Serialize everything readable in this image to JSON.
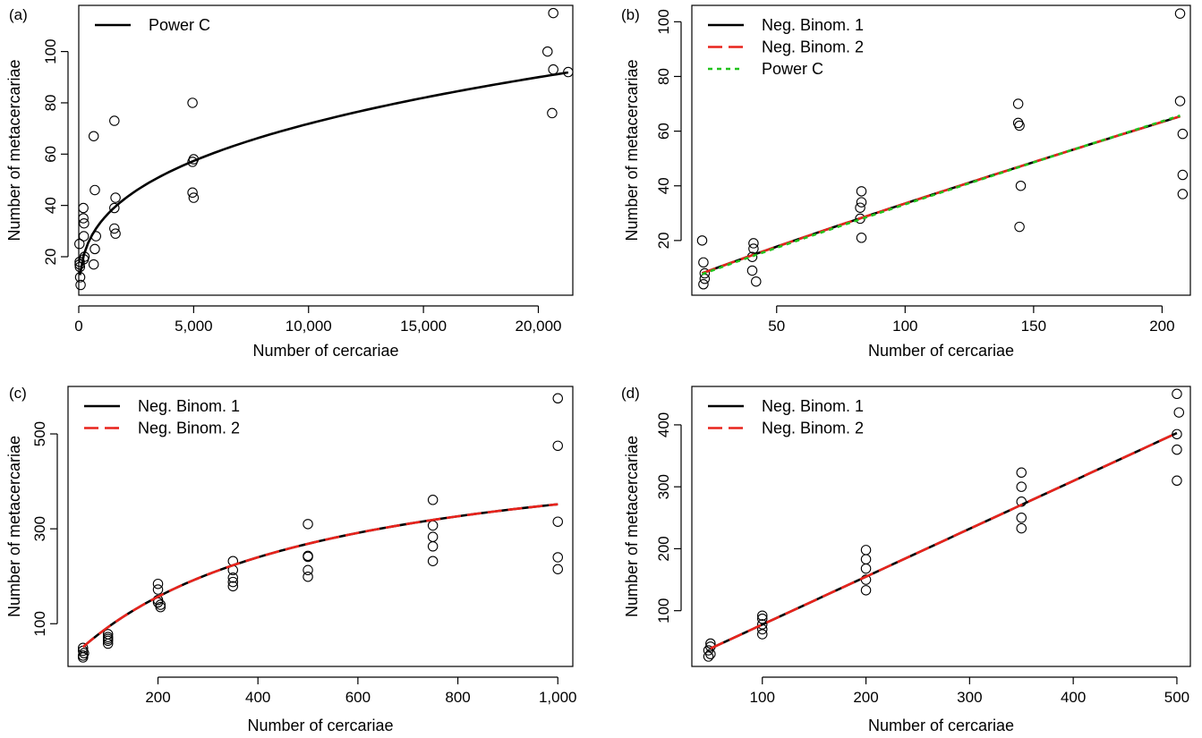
{
  "chart_data": [
    {
      "panel_label": "(a)",
      "type": "scatter",
      "xlabel": "Number of cercariae",
      "ylabel": "Number of metacercariae",
      "xlim": [
        0,
        21500
      ],
      "ylim": [
        5,
        118
      ],
      "xticks": [
        0,
        5000,
        10000,
        15000,
        20000
      ],
      "xtick_labels": [
        "0",
        "5,000",
        "10,000",
        "15,000",
        "20,000"
      ],
      "yticks": [
        20,
        40,
        60,
        80,
        100
      ],
      "ytick_labels": [
        "20",
        "40",
        "60",
        "80",
        "100"
      ],
      "legend_position": "top-left",
      "points": [
        [
          30,
          25
        ],
        [
          40,
          18
        ],
        [
          40,
          17
        ],
        [
          50,
          16
        ],
        [
          60,
          12
        ],
        [
          80,
          9
        ],
        [
          200,
          39
        ],
        [
          200,
          35
        ],
        [
          230,
          33
        ],
        [
          220,
          28
        ],
        [
          250,
          20
        ],
        [
          220,
          19
        ],
        [
          650,
          67
        ],
        [
          700,
          46
        ],
        [
          750,
          28
        ],
        [
          700,
          23
        ],
        [
          650,
          17
        ],
        [
          1550,
          73
        ],
        [
          1600,
          43
        ],
        [
          1550,
          39
        ],
        [
          1550,
          31
        ],
        [
          1600,
          29
        ],
        [
          4950,
          80
        ],
        [
          5000,
          58
        ],
        [
          4950,
          57
        ],
        [
          4950,
          45
        ],
        [
          5000,
          43
        ],
        [
          20400,
          100
        ],
        [
          20650,
          115
        ],
        [
          20650,
          93
        ],
        [
          20600,
          76
        ],
        [
          21300,
          92
        ]
      ],
      "series": [
        {
          "name": "Power C",
          "color": "#000000",
          "dash": "solid",
          "model": "power",
          "a": 3.6,
          "b": 0.325,
          "x_range": [
            50,
            21300
          ]
        }
      ]
    },
    {
      "panel_label": "(b)",
      "type": "scatter",
      "xlabel": "Number of cercariae",
      "ylabel": "Number of metacercariae",
      "xlim": [
        17,
        211
      ],
      "ylim": [
        0,
        106
      ],
      "xticks": [
        50,
        100,
        150,
        200
      ],
      "xtick_labels": [
        "50",
        "100",
        "150",
        "200"
      ],
      "yticks": [
        20,
        40,
        60,
        80,
        100
      ],
      "yticks_labels_note": "",
      "ytick_labels": [
        "20",
        "40",
        "60",
        "80",
        "100"
      ],
      "legend_position": "top-left",
      "points": [
        [
          21,
          20
        ],
        [
          21.5,
          12
        ],
        [
          22,
          8
        ],
        [
          22,
          6
        ],
        [
          21.5,
          4
        ],
        [
          41,
          19
        ],
        [
          41,
          17
        ],
        [
          40.5,
          14
        ],
        [
          40.5,
          9
        ],
        [
          42,
          5
        ],
        [
          83,
          38
        ],
        [
          83,
          34
        ],
        [
          82.5,
          32
        ],
        [
          82.5,
          28
        ],
        [
          83,
          21
        ],
        [
          144,
          70
        ],
        [
          144,
          63
        ],
        [
          144.5,
          62
        ],
        [
          145,
          40
        ],
        [
          144.5,
          25
        ],
        [
          207,
          103
        ],
        [
          207,
          71
        ],
        [
          208,
          59
        ],
        [
          208,
          44
        ],
        [
          208,
          37
        ]
      ],
      "series": [
        {
          "name": "Neg. Binom. 1",
          "color": "#000000",
          "dash": "solid",
          "model": "power",
          "a": 0.4893,
          "b": 0.918,
          "x_range": [
            21,
            207
          ]
        },
        {
          "name": "Neg. Binom. 2",
          "color": "#e8231c",
          "dash": "long",
          "model": "power",
          "a": 0.4893,
          "b": 0.918,
          "x_range": [
            21,
            207
          ]
        },
        {
          "name": "Power C",
          "color": "#21c21c",
          "dash": "dot",
          "model": "power",
          "a": 0.444,
          "b": 0.937,
          "x_range": [
            21,
            207
          ]
        }
      ]
    },
    {
      "panel_label": "(c)",
      "type": "scatter",
      "xlabel": "Number of cercariae",
      "ylabel": "Number of metacercariae",
      "xlim": [
        20,
        1030
      ],
      "ylim": [
        10,
        600
      ],
      "xticks": [
        200,
        400,
        600,
        800,
        1000
      ],
      "xtick_labels": [
        "200",
        "400",
        "600",
        "800",
        "1,000"
      ],
      "yticks": [
        100,
        300,
        500
      ],
      "ytick_labels": [
        "100",
        "300",
        "500"
      ],
      "legend_position": "top-left",
      "points": [
        [
          50,
          49
        ],
        [
          50,
          43
        ],
        [
          52,
          38
        ],
        [
          50,
          33
        ],
        [
          50,
          29
        ],
        [
          100,
          78
        ],
        [
          100,
          72
        ],
        [
          100,
          68
        ],
        [
          100,
          64
        ],
        [
          100,
          58
        ],
        [
          200,
          184
        ],
        [
          200,
          172
        ],
        [
          200,
          150
        ],
        [
          200,
          145
        ],
        [
          205,
          140
        ],
        [
          205,
          135
        ],
        [
          350,
          232
        ],
        [
          350,
          213
        ],
        [
          350,
          197
        ],
        [
          350,
          188
        ],
        [
          350,
          179
        ],
        [
          500,
          310
        ],
        [
          500,
          243
        ],
        [
          500,
          241
        ],
        [
          500,
          213
        ],
        [
          500,
          199
        ],
        [
          750,
          361
        ],
        [
          750,
          307
        ],
        [
          750,
          283
        ],
        [
          750,
          263
        ],
        [
          750,
          232
        ],
        [
          1000,
          575
        ],
        [
          1000,
          475
        ],
        [
          1000,
          315
        ],
        [
          1000,
          240
        ],
        [
          1000,
          215
        ]
      ],
      "series": [
        {
          "name": "Neg. Binom. 1",
          "color": "#000000",
          "dash": "solid",
          "model": "saturating",
          "a": 510,
          "k": 450,
          "x_range": [
            50,
            1000
          ]
        },
        {
          "name": "Neg. Binom. 2",
          "color": "#e8231c",
          "dash": "long",
          "model": "saturating",
          "a": 510,
          "k": 450,
          "x_range": [
            50,
            1000
          ]
        }
      ]
    },
    {
      "panel_label": "(d)",
      "type": "scatter",
      "xlabel": "Number of cercariae",
      "ylabel": "Number of metacercariae",
      "xlim": [
        32,
        513
      ],
      "ylim": [
        10,
        462
      ],
      "xticks": [
        100,
        200,
        300,
        400,
        500
      ],
      "xtick_labels": [
        "100",
        "200",
        "300",
        "400",
        "500"
      ],
      "yticks": [
        100,
        200,
        300,
        400
      ],
      "ytick_labels": [
        "100",
        "200",
        "300",
        "400"
      ],
      "legend_position": "top-left",
      "points": [
        [
          50,
          47
        ],
        [
          50,
          42
        ],
        [
          48,
          36
        ],
        [
          50,
          30
        ],
        [
          48,
          26
        ],
        [
          100,
          92
        ],
        [
          100,
          87
        ],
        [
          100,
          78
        ],
        [
          100,
          70
        ],
        [
          100,
          62
        ],
        [
          200,
          198
        ],
        [
          200,
          183
        ],
        [
          200,
          168
        ],
        [
          200,
          150
        ],
        [
          200,
          133
        ],
        [
          350,
          323
        ],
        [
          350,
          300
        ],
        [
          350,
          276
        ],
        [
          350,
          250
        ],
        [
          350,
          233
        ],
        [
          500,
          450
        ],
        [
          502,
          420
        ],
        [
          500,
          385
        ],
        [
          500,
          360
        ],
        [
          500,
          310
        ]
      ],
      "series": [
        {
          "name": "Neg. Binom. 1",
          "color": "#000000",
          "dash": "solid",
          "model": "linear",
          "a": 0.773,
          "c": 0.3,
          "x_range": [
            50,
            500
          ]
        },
        {
          "name": "Neg. Binom. 2",
          "color": "#e8231c",
          "dash": "long",
          "model": "linear",
          "a": 0.773,
          "c": 0.3,
          "x_range": [
            50,
            500
          ]
        }
      ]
    }
  ]
}
